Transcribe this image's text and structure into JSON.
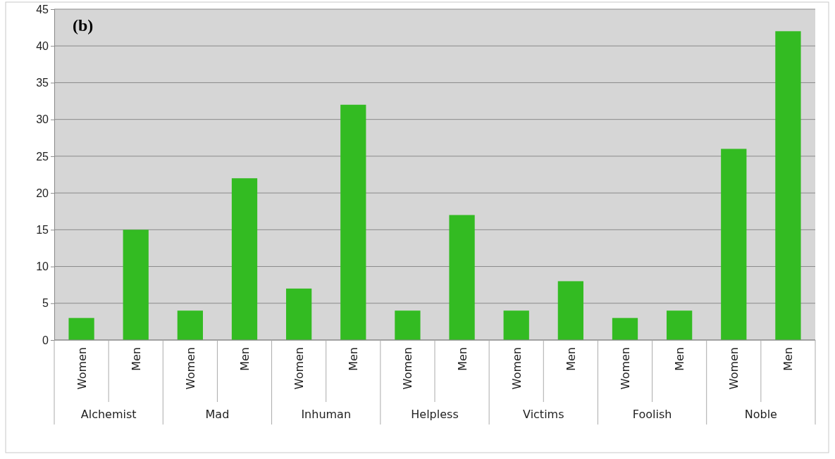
{
  "chart_data": {
    "type": "bar",
    "title": "(b)",
    "categories": [
      "Alchemist",
      "Mad",
      "Inhuman",
      "Helpless",
      "Victims",
      "Foolish",
      "Noble"
    ],
    "series": [
      {
        "name": "Women",
        "color": "#33bb22",
        "values": [
          3,
          4,
          7,
          4,
          4,
          3,
          26
        ]
      },
      {
        "name": "Men",
        "color": "#33bb22",
        "values": [
          15,
          22,
          32,
          17,
          8,
          4,
          42
        ]
      }
    ],
    "ylim": [
      0,
      45
    ],
    "yticks": [
      0,
      5,
      10,
      15,
      20,
      25,
      30,
      35,
      40,
      45
    ],
    "grid": "y"
  }
}
